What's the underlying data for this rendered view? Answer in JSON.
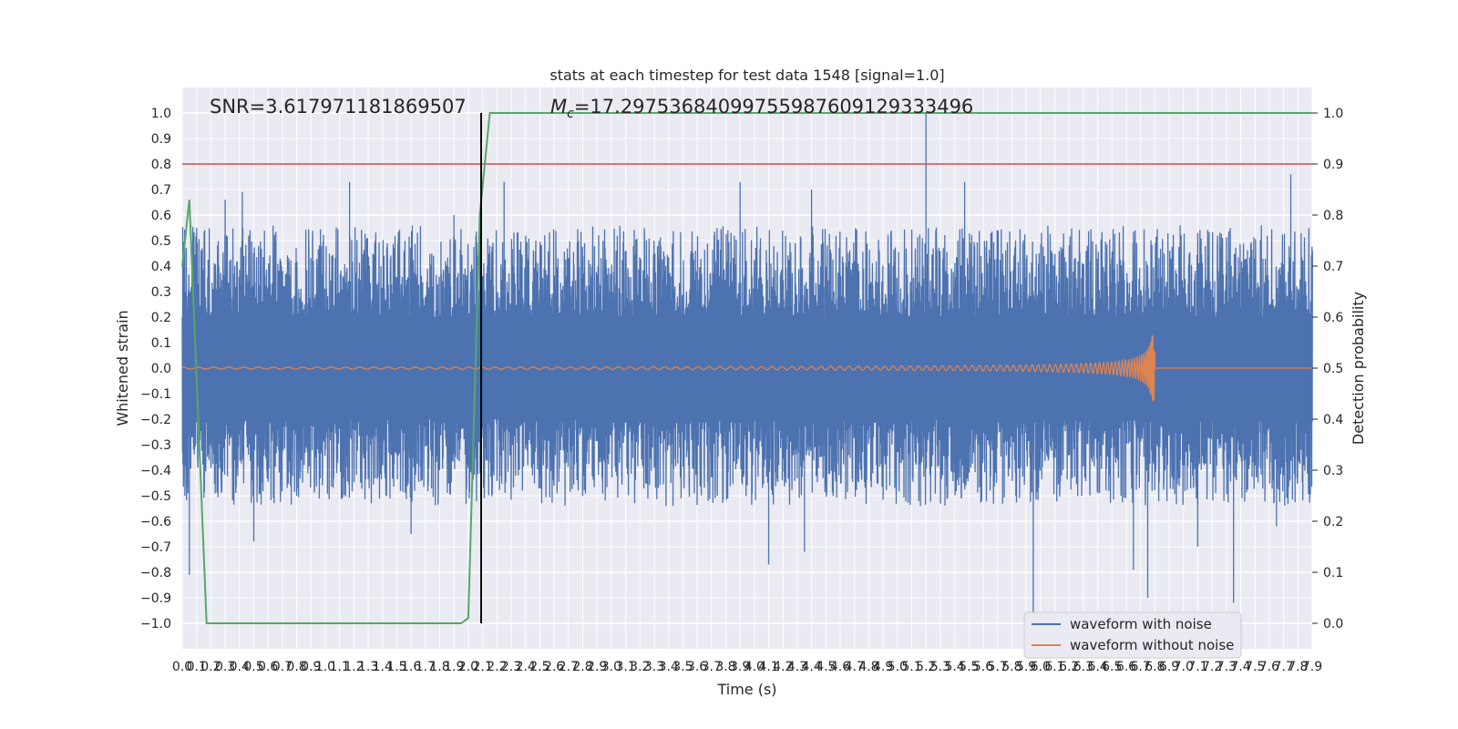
{
  "chart_data": {
    "type": "line",
    "title": "stats at each timestep for test data 1548 [signal=1.0]",
    "xlabel": "Time (s)",
    "ylabel": "Whitened strain",
    "y2label": "Detection probability",
    "xlim": [
      0.0,
      7.9
    ],
    "ylim": [
      -1.1,
      1.1
    ],
    "y2lim": [
      -0.05,
      1.05
    ],
    "x_ticks": [
      "0.0",
      "0.1",
      "0.2",
      "0.3",
      "0.4",
      "0.5",
      "0.6",
      "0.7",
      "0.8",
      "0.9",
      "1.0",
      "1.1",
      "1.2",
      "1.3",
      "1.4",
      "1.5",
      "1.6",
      "1.7",
      "1.8",
      "1.9",
      "2.0",
      "2.1",
      "2.2",
      "2.3",
      "2.4",
      "2.5",
      "2.6",
      "2.7",
      "2.8",
      "2.9",
      "3.0",
      "3.1",
      "3.2",
      "3.3",
      "3.4",
      "3.5",
      "3.6",
      "3.7",
      "3.8",
      "3.9",
      "4.0",
      "4.1",
      "4.2",
      "4.3",
      "4.4",
      "4.5",
      "4.6",
      "4.7",
      "4.8",
      "4.9",
      "5.0",
      "5.1",
      "5.2",
      "5.3",
      "5.4",
      "5.5",
      "5.6",
      "5.7",
      "5.8",
      "5.9",
      "6.0",
      "6.1",
      "6.2",
      "6.3",
      "6.4",
      "6.5",
      "6.6",
      "6.7",
      "6.8",
      "6.9",
      "7.0",
      "7.1",
      "7.2",
      "7.3",
      "7.4",
      "7.5",
      "7.6",
      "7.7",
      "7.8",
      "7.9"
    ],
    "y_ticks": [
      "1.0",
      "0.9",
      "0.8",
      "0.7",
      "0.6",
      "0.5",
      "0.4",
      "0.3",
      "0.2",
      "0.1",
      "0.0",
      "−0.1",
      "−0.2",
      "−0.3",
      "−0.4",
      "−0.5",
      "−0.6",
      "−0.7",
      "−0.8",
      "−0.9",
      "−1.0"
    ],
    "y2_ticks": [
      "1.0",
      "0.9",
      "0.8",
      "0.7",
      "0.6",
      "0.5",
      "0.4",
      "0.3",
      "0.2",
      "0.1",
      "0.0"
    ],
    "annotations": {
      "snr": "SNR=3.617971181869507",
      "mc_overlap": "M_c=17.29753684099755987609129333496",
      "mc_symbol": "M",
      "mc_subscript": "c",
      "mc_rest": "=17.29753684099755987609129333496"
    },
    "grid": true,
    "legend_placement": "lower-right",
    "series": [
      {
        "name": "waveform with noise",
        "color": "#4c72b0",
        "axis": "left",
        "envelope_note": "dense noise band roughly between -0.5 and 0.6 with spikes",
        "spikes": [
          [
            0.05,
            -0.81
          ],
          [
            0.3,
            0.66
          ],
          [
            0.42,
            0.69
          ],
          [
            0.5,
            -0.68
          ],
          [
            1.17,
            0.73
          ],
          [
            1.6,
            -0.65
          ],
          [
            1.9,
            0.6
          ],
          [
            2.25,
            0.73
          ],
          [
            3.9,
            0.73
          ],
          [
            4.1,
            -0.77
          ],
          [
            4.4,
            0.7
          ],
          [
            4.35,
            -0.72
          ],
          [
            5.2,
            1.0
          ],
          [
            5.47,
            0.73
          ],
          [
            5.95,
            -0.99
          ],
          [
            6.65,
            -0.79
          ],
          [
            6.75,
            -0.9
          ],
          [
            7.1,
            -0.7
          ],
          [
            7.35,
            -0.92
          ],
          [
            7.75,
            0.76
          ],
          [
            7.65,
            -0.62
          ]
        ]
      },
      {
        "name": "waveform without noise",
        "color": "#dd8452",
        "axis": "left",
        "chirp": {
          "start": 0.0,
          "end": 6.8,
          "peak_amplitude": 0.13,
          "peak_time": 6.8
        }
      },
      {
        "name": "detection probability",
        "color": "#55a868",
        "axis": "right",
        "x": [
          0.0,
          0.05,
          0.17,
          0.25,
          1.95,
          2.0,
          2.08,
          2.15,
          7.9
        ],
        "y": [
          0.7,
          0.83,
          0.0,
          0.0,
          0.0,
          0.01,
          0.8,
          1.0,
          1.0
        ]
      }
    ],
    "hlines": [
      {
        "axis": "right",
        "value": 0.9,
        "color": "#c44e52"
      }
    ],
    "vlines": [
      {
        "x": 2.09,
        "from": -1.0,
        "to": 1.0,
        "color": "#000000"
      }
    ]
  }
}
